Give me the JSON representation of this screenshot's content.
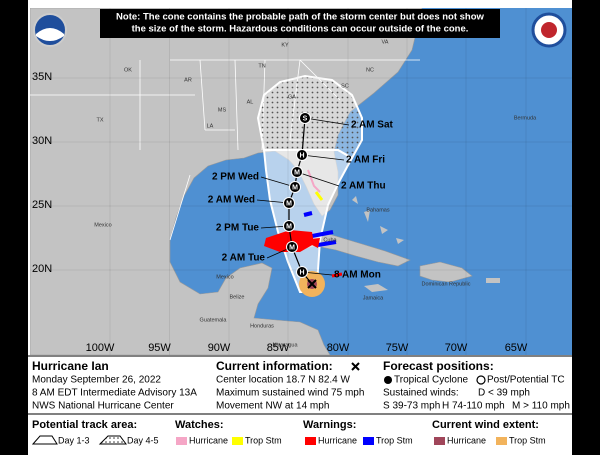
{
  "note": {
    "lines": [
      "Note: The cone contains the probable path of the storm center but does not show",
      "the size of the storm. Hazardous conditions can occur outside of the cone."
    ]
  },
  "map": {
    "lat_labels": [
      "35N",
      "30N",
      "25N",
      "20N"
    ],
    "lon_labels": [
      "100W",
      "95W",
      "90W",
      "85W",
      "80W",
      "75W",
      "70W",
      "65W"
    ],
    "place_labels": [
      "KY",
      "VA",
      "TN",
      "NC",
      "OK",
      "AR",
      "SC",
      "MS",
      "AL",
      "GA",
      "TX",
      "LA",
      "Mexico",
      "Mexico",
      "Bahamas",
      "Cuba",
      "Jamaica",
      "Bermuda",
      "Dominican Republic",
      "Belize",
      "Guatemala",
      "Honduras",
      "Nicaragua"
    ]
  },
  "track": {
    "points": [
      "H",
      "M",
      "M",
      "M",
      "M",
      "M",
      "H",
      "S"
    ],
    "labels": [
      "8 AM Mon",
      "2 AM Tue",
      "2 PM Tue",
      "2 AM Wed",
      "2 PM Wed",
      "2 AM Thu",
      "2 AM Fri",
      "2 AM Sat"
    ]
  },
  "info": {
    "storm": {
      "name": "Hurricane Ian",
      "date": "Monday September 26, 2022",
      "advisory": "8 AM EDT Intermediate Advisory 13A",
      "office": "NWS National Hurricane Center"
    },
    "current": {
      "title": "Current information:",
      "location": "Center location 18.7 N 82.4 W",
      "wind": "Maximum sustained wind 75 mph",
      "movement": "Movement NW at 14 mph"
    },
    "forecast": {
      "title": "Forecast positions:",
      "tropical": "Tropical Cyclone",
      "post": "Post/Potential TC",
      "winds_title": "Sustained winds:",
      "d": "D < 39 mph",
      "s": "S 39-73 mph",
      "h": "H 74-110 mph",
      "m": "M > 110 mph"
    }
  },
  "legend": {
    "track_area": {
      "title": "Potential track area:",
      "day13": "Day 1-3",
      "day45": "Day 4-5"
    },
    "watches": {
      "title": "Watches:",
      "hurricane": "Hurricane",
      "trop": "Trop Stm"
    },
    "warnings": {
      "title": "Warnings:",
      "hurricane": "Hurricane",
      "trop": "Trop Stm"
    },
    "wind_extent": {
      "title": "Current wind extent:",
      "hurricane": "Hurricane",
      "trop": "Trop Stm"
    }
  }
}
